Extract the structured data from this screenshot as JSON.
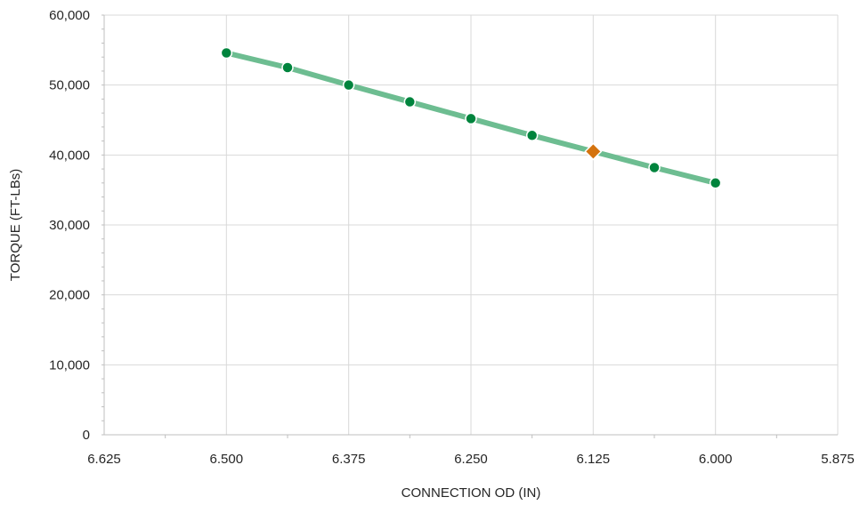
{
  "chart_data": {
    "type": "line",
    "title": "",
    "xlabel": "CONNECTION OD (IN)",
    "ylabel": "TORQUE (FT-LBs)",
    "xlim": [
      6.625,
      5.875
    ],
    "x_reversed": true,
    "ylim": [
      0,
      60000
    ],
    "x_ticks": [
      6.625,
      6.5,
      6.375,
      6.25,
      6.125,
      6.0,
      5.875
    ],
    "x_tick_labels": [
      "6.625",
      "6.500",
      "6.375",
      "6.250",
      "6.125",
      "6.000",
      "5.875"
    ],
    "y_ticks": [
      0,
      10000,
      20000,
      30000,
      40000,
      50000,
      60000
    ],
    "y_tick_labels": [
      "0",
      "10,000",
      "20,000",
      "30,000",
      "40,000",
      "50,000",
      "60,000"
    ],
    "grid": true,
    "series": [
      {
        "x": [
          6.5,
          6.4375,
          6.375,
          6.3125,
          6.25,
          6.1875,
          6.125,
          6.0625,
          6.0
        ],
        "y": [
          54600,
          52500,
          50000,
          47600,
          45200,
          42800,
          40500,
          38200,
          36000
        ],
        "line_color": "#6dbd91",
        "marker_color": "#00843d"
      }
    ],
    "highlight_point": {
      "x": 6.125,
      "y": 40500,
      "marker": "diamond",
      "color": "#d4730f"
    }
  }
}
